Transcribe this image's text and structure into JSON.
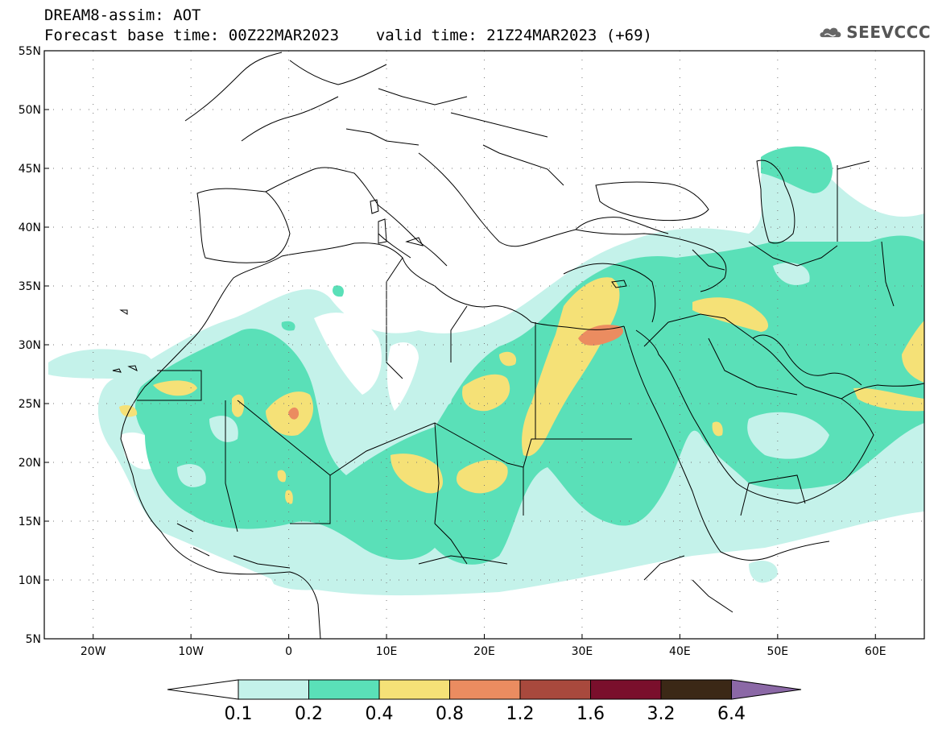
{
  "header": {
    "model_title": "DREAM8-assim: AOT",
    "base_time": "Forecast base time: 00Z22MAR2023",
    "valid_time": "valid time: 21Z24MAR2023 (+69)"
  },
  "logo": {
    "text": "SEEVCCC",
    "icon": "cloud-icon"
  },
  "map": {
    "projection": "equirectangular",
    "lon_range": [
      -25,
      65
    ],
    "lat_range": [
      5,
      55
    ],
    "lat_labels": [
      "5N",
      "10N",
      "15N",
      "20N",
      "25N",
      "30N",
      "35N",
      "40N",
      "45N",
      "50N",
      "55N"
    ],
    "lon_labels": [
      "20W",
      "10W",
      "0",
      "10E",
      "20E",
      "30E",
      "40E",
      "50E",
      "60E"
    ],
    "grid": "dotted",
    "field": "aerosol optical thickness"
  },
  "colorbar": {
    "levels": [
      "0.1",
      "0.2",
      "0.4",
      "0.8",
      "1.2",
      "1.6",
      "3.2",
      "6.4"
    ],
    "colors": [
      "#c4f2ea",
      "#5ae0b8",
      "#f5e177",
      "#eb8c60",
      "#a8493d",
      "#7a0f2c",
      "#3b2816",
      "#8b68a6"
    ],
    "under_color": "#ffffff",
    "over_color": "#8b68a6"
  },
  "colors": {
    "lightest": "#c4f2ea",
    "light": "#5ae0b8",
    "yellow": "#f5e177",
    "orange": "#eb8c60",
    "brown": "#a8493d"
  }
}
